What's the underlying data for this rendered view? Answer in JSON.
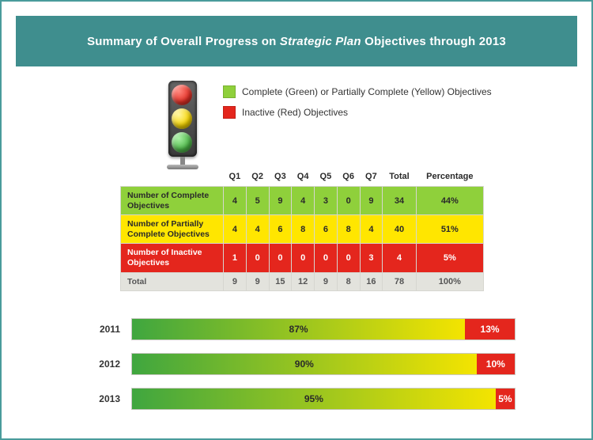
{
  "frame": {
    "border_color": "#4a9b9b",
    "background": "#ffffff"
  },
  "header": {
    "bg": "#3f8e8e",
    "title_pre": "Summary of Overall Progress on ",
    "title_em": "Strategic Plan",
    "title_post": " Objectives through 2013",
    "text_color": "#ffffff",
    "fontsize": 15
  },
  "traffic_light": {
    "red": "#e53127",
    "yellow": "#f6d400",
    "green": "#4db748"
  },
  "legend": {
    "green_swatch": "#8fd03b",
    "red_swatch": "#e4261d",
    "line1": "Complete (Green) or Partially Complete (Yellow) Objectives",
    "line2": "Inactive (Red) Objectives",
    "fontsize": 12
  },
  "table": {
    "columns": [
      "Q1",
      "Q2",
      "Q3",
      "Q4",
      "Q5",
      "Q6",
      "Q7",
      "Total",
      "Percentage"
    ],
    "rows": [
      {
        "label": "Number of Complete Objectives",
        "bg": "#8fd03b",
        "text": "#2a2a2a",
        "cells": [
          "4",
          "5",
          "9",
          "4",
          "3",
          "0",
          "9",
          "34",
          "44%"
        ]
      },
      {
        "label": "Number of Partially Complete Objectives",
        "bg": "#ffe600",
        "text": "#2a2a2a",
        "cells": [
          "4",
          "4",
          "6",
          "8",
          "6",
          "8",
          "4",
          "40",
          "51%"
        ]
      },
      {
        "label": "Number of Inactive Objectives",
        "bg": "#e4261d",
        "text": "#ffffff",
        "cells": [
          "1",
          "0",
          "0",
          "0",
          "0",
          "0",
          "3",
          "4",
          "5%"
        ]
      }
    ],
    "total": {
      "label": "Total",
      "bg": "#e3e3dd",
      "cells": [
        "9",
        "9",
        "15",
        "12",
        "9",
        "8",
        "16",
        "78",
        "100%"
      ]
    },
    "header_fontsize": 11,
    "cell_fontsize": 11,
    "border_color": "#d6d6d0"
  },
  "year_bars": {
    "gradient_start": "#3fa63f",
    "gradient_end": "#f4e400",
    "red": "#e4261d",
    "label_fontsize": 12,
    "value_fontsize": 12,
    "items": [
      {
        "year": "2011",
        "green_pct": 87,
        "green_label": "87%",
        "red_pct": 13,
        "red_label": "13%"
      },
      {
        "year": "2012",
        "green_pct": 90,
        "green_label": "90%",
        "red_pct": 10,
        "red_label": "10%"
      },
      {
        "year": "2013",
        "green_pct": 95,
        "green_label": "95%",
        "red_pct": 5,
        "red_label": "5%"
      }
    ]
  }
}
